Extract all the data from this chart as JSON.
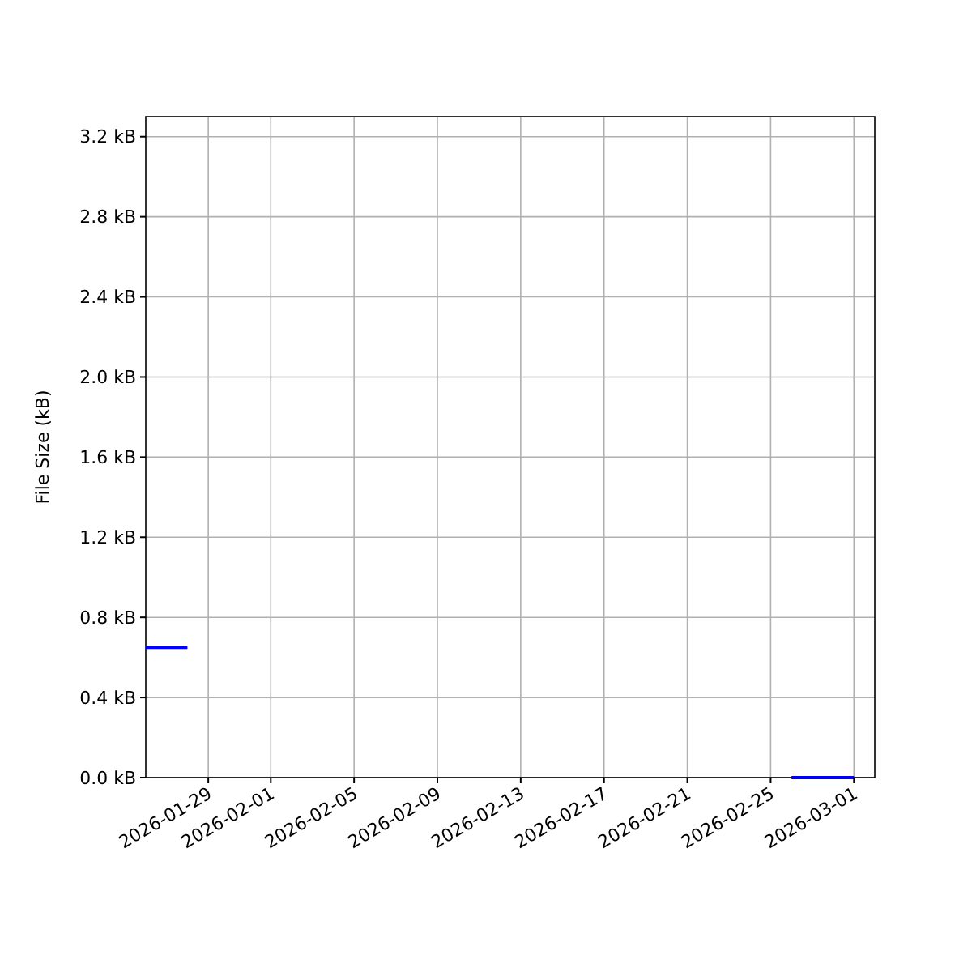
{
  "chart_data": {
    "type": "line",
    "ylabel": "File Size (kB)",
    "x": [
      "2026-01-26",
      "2026-01-28",
      "2026-01-29",
      "2026-02-25",
      "2026-02-26",
      "2026-03-01"
    ],
    "series": [
      {
        "color": "#0000ff",
        "values": [
          0.65,
          0.65,
          null,
          null,
          0,
          0
        ]
      }
    ],
    "xlim": [
      "2026-01-26",
      "2026-03-02"
    ],
    "xticks": [
      "2026-01-29",
      "2026-02-01",
      "2026-02-05",
      "2026-02-09",
      "2026-02-13",
      "2026-02-17",
      "2026-02-21",
      "2026-02-25",
      "2026-03-01"
    ],
    "ylim": [
      0,
      3.3
    ],
    "yticks": [
      {
        "value": 0,
        "label": "0.0 kB"
      },
      {
        "value": 0.4,
        "label": "0.4 kB"
      },
      {
        "value": 0.8,
        "label": "0.8 kB"
      },
      {
        "value": 1.2,
        "label": "1.2 kB"
      },
      {
        "value": 1.6,
        "label": "1.6 kB"
      },
      {
        "value": 2.0,
        "label": "2.0 kB"
      },
      {
        "value": 2.4,
        "label": "2.4 kB"
      },
      {
        "value": 2.8,
        "label": "2.8 kB"
      },
      {
        "value": 3.2,
        "label": "3.2 kB"
      }
    ],
    "grid": true,
    "marker": "none",
    "line_style": "solid"
  }
}
